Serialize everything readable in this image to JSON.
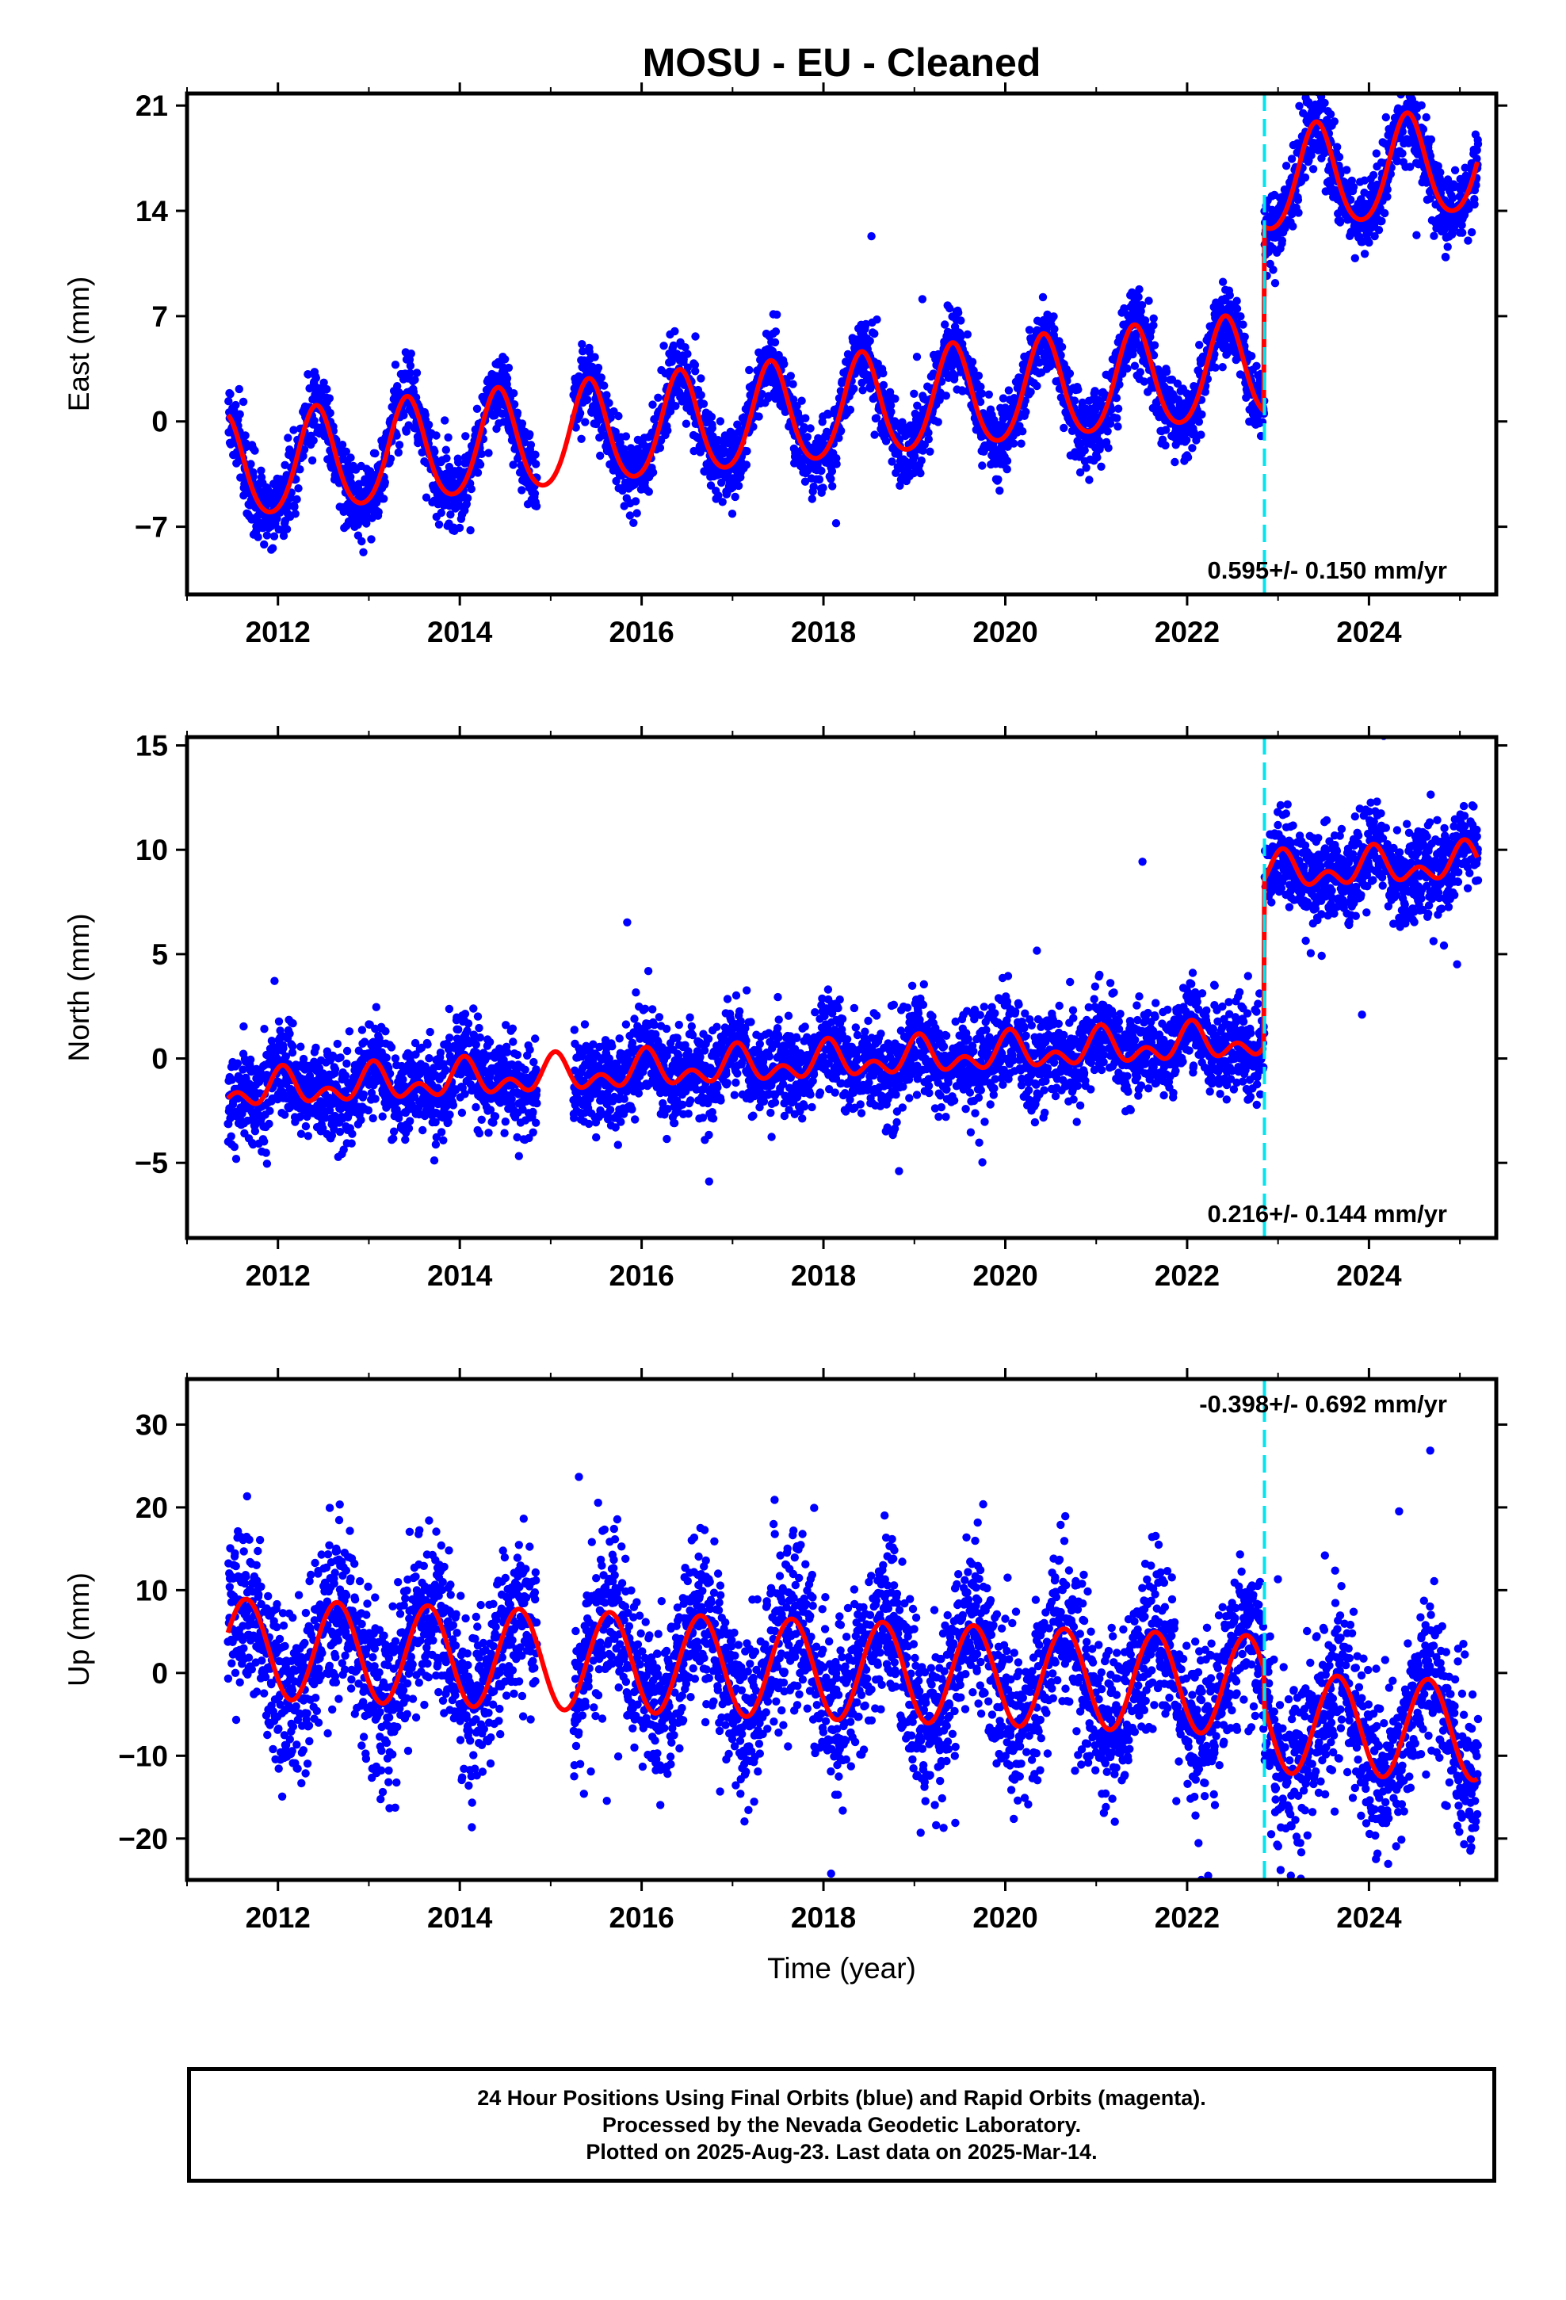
{
  "title": "MOSU  - EU - Cleaned",
  "xlabel": "Time (year)",
  "colors": {
    "final_orbits": "#0000ff",
    "rapid_orbits": "#ff00ff",
    "model": "#ff0000",
    "offset_line": "#00e5ee",
    "frame": "#000000"
  },
  "footer": {
    "line1": "24 Hour Positions Using Final Orbits (blue) and Rapid Orbits (magenta).",
    "line2": "Processed by the Nevada Geodetic Laboratory.",
    "line3": "Plotted on 2025-Aug-23. Last data on 2025-Mar-14."
  },
  "chart_data": [
    {
      "type": "scatter",
      "component": "East",
      "ylabel": "East (mm)",
      "xlim": [
        2011.0,
        2025.4
      ],
      "ylim": [
        -11.5,
        21.8
      ],
      "xticks": [
        2012,
        2014,
        2016,
        2018,
        2020,
        2022,
        2024
      ],
      "yticks": [
        21,
        14,
        7,
        0,
        -7
      ],
      "ytick_labels": [
        "21",
        "14",
        "7",
        "0",
        "−7"
      ],
      "rate_label": "0.595+/- 0.150 mm/yr",
      "rate_position": "bottom-right",
      "offset_epoch": 2022.85,
      "data_span": [
        2011.45,
        2025.2
      ],
      "gaps": [
        [
          2014.85,
          2015.25
        ]
      ],
      "model": {
        "intercept": -3.3,
        "rate": 0.595,
        "ref_year": 2011.45,
        "annual_amplitude": 3.4,
        "annual_phase_peak": 0.42,
        "semiannual_amplitude": 0.4,
        "offset_after": 12.3,
        "scatter_sigma": 1.2
      }
    },
    {
      "type": "scatter",
      "component": "North",
      "ylabel": "North (mm)",
      "xlim": [
        2011.0,
        2025.4
      ],
      "ylim": [
        -8.6,
        15.4
      ],
      "xticks": [
        2012,
        2014,
        2016,
        2018,
        2020,
        2022,
        2024
      ],
      "yticks": [
        15,
        10,
        5,
        0,
        -5
      ],
      "ytick_labels": [
        "15",
        "10",
        "5",
        "0",
        "−5"
      ],
      "rate_label": "0.216+/- 0.144 mm/yr",
      "rate_position": "bottom-right",
      "offset_epoch": 2022.85,
      "data_span": [
        2011.45,
        2025.2
      ],
      "gaps": [
        [
          2014.85,
          2015.25
        ]
      ],
      "model": {
        "intercept": -1.6,
        "rate": 0.216,
        "ref_year": 2011.45,
        "annual_amplitude": 0.6,
        "annual_phase_peak": 0.05,
        "semiannual_amplitude": 0.55,
        "offset_after": 8.0,
        "scatter_sigma": 1.1
      }
    },
    {
      "type": "scatter",
      "component": "Up",
      "ylabel": "Up (mm)",
      "xlim": [
        2011.0,
        2025.4
      ],
      "ylim": [
        -25.0,
        35.5
      ],
      "xticks": [
        2012,
        2014,
        2016,
        2018,
        2020,
        2022,
        2024
      ],
      "yticks": [
        30,
        20,
        10,
        0,
        -10,
        -20
      ],
      "ytick_labels": [
        "30",
        "20",
        "10",
        "0",
        "−10",
        "−20"
      ],
      "rate_label": "-0.398+/- 0.692 mm/yr",
      "rate_position": "top-right",
      "offset_epoch": 2022.85,
      "data_span": [
        2011.45,
        2025.2
      ],
      "gaps": [
        [
          2014.85,
          2015.25
        ]
      ],
      "model": {
        "intercept": 3.0,
        "rate": -0.398,
        "ref_year": 2011.45,
        "annual_amplitude": 6.0,
        "annual_phase_peak": 0.65,
        "semiannual_amplitude": 0.0,
        "offset_after": -4.5,
        "scatter_sigma": 5.0
      }
    }
  ]
}
